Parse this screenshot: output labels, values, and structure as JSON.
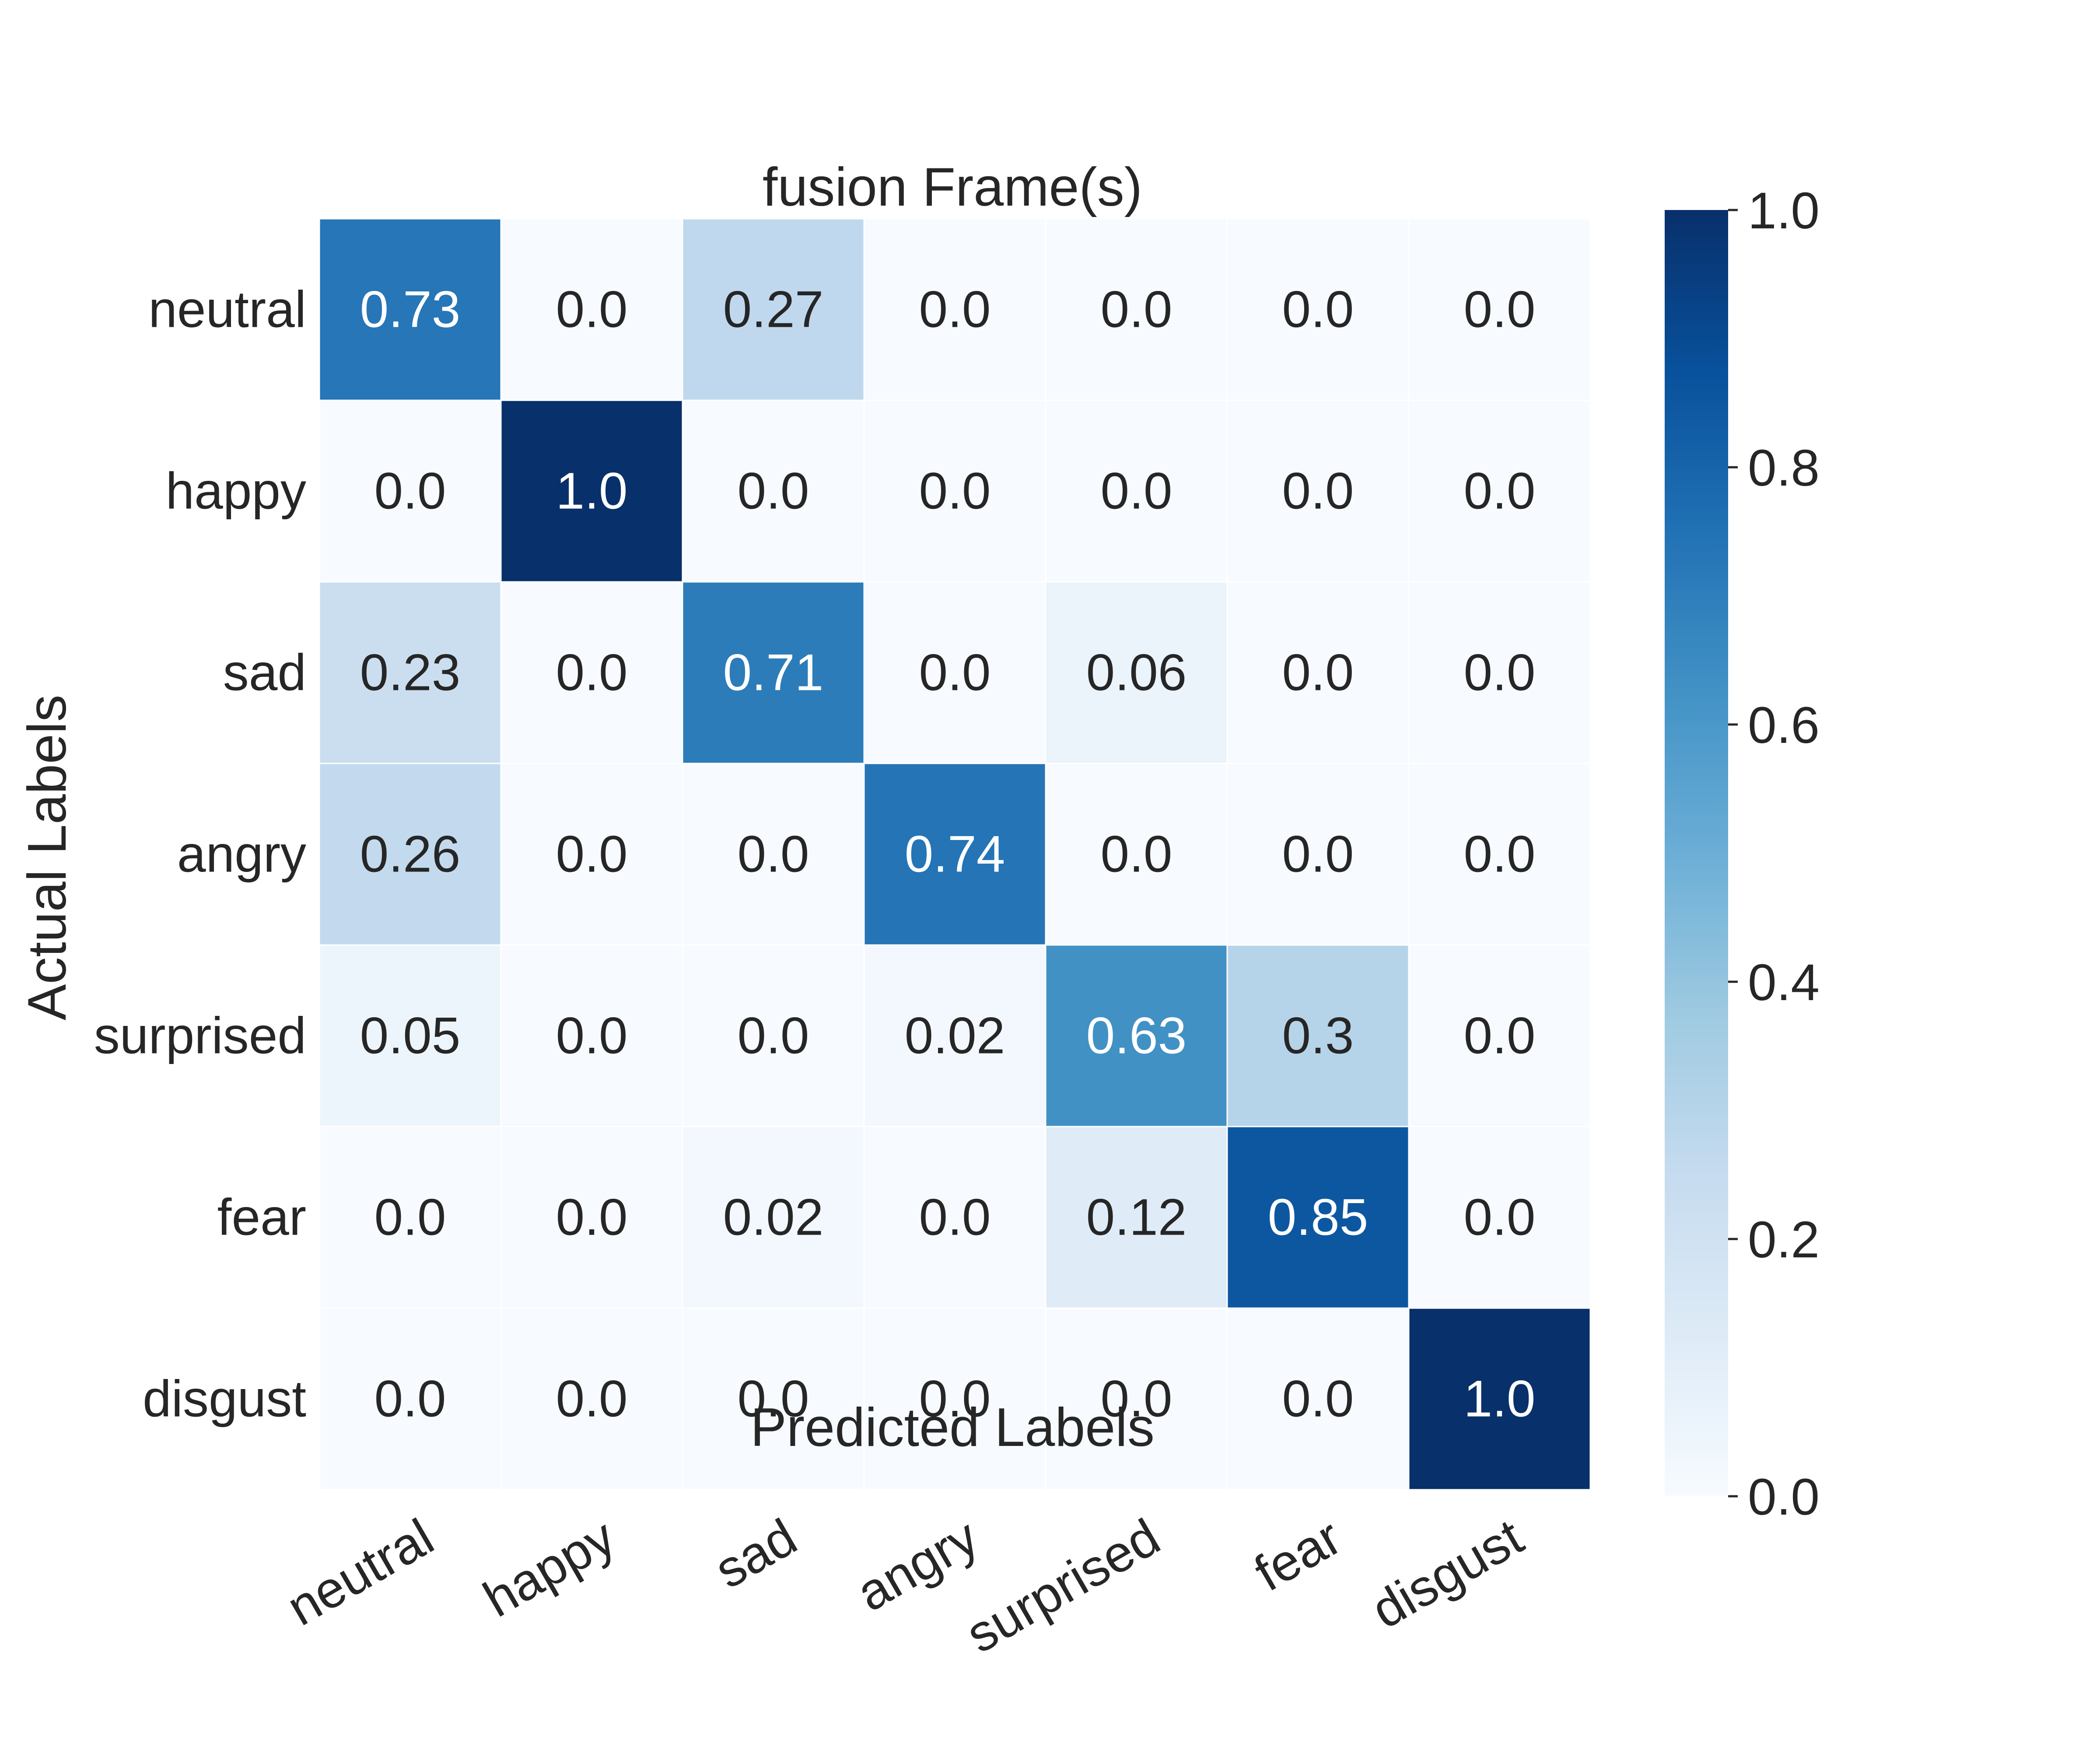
{
  "chart_data": {
    "type": "heatmap",
    "title": "fusion Frame(s)",
    "xlabel": "Predicted Labels",
    "ylabel": "Actual Labels",
    "x_categories": [
      "neutral",
      "happy",
      "sad",
      "angry",
      "surprised",
      "fear",
      "disgust"
    ],
    "y_categories": [
      "neutral",
      "happy",
      "sad",
      "angry",
      "surprised",
      "fear",
      "disgust"
    ],
    "values": [
      [
        0.73,
        0.0,
        0.27,
        0.0,
        0.0,
        0.0,
        0.0
      ],
      [
        0.0,
        1.0,
        0.0,
        0.0,
        0.0,
        0.0,
        0.0
      ],
      [
        0.23,
        0.0,
        0.71,
        0.0,
        0.06,
        0.0,
        0.0
      ],
      [
        0.26,
        0.0,
        0.0,
        0.74,
        0.0,
        0.0,
        0.0
      ],
      [
        0.05,
        0.0,
        0.0,
        0.02,
        0.63,
        0.3,
        0.0
      ],
      [
        0.0,
        0.0,
        0.02,
        0.0,
        0.12,
        0.85,
        0.0
      ],
      [
        0.0,
        0.0,
        0.0,
        0.0,
        0.0,
        0.0,
        1.0
      ]
    ],
    "cell_labels": [
      [
        "0.73",
        "0.0",
        "0.27",
        "0.0",
        "0.0",
        "0.0",
        "0.0"
      ],
      [
        "0.0",
        "1.0",
        "0.0",
        "0.0",
        "0.0",
        "0.0",
        "0.0"
      ],
      [
        "0.23",
        "0.0",
        "0.71",
        "0.0",
        "0.06",
        "0.0",
        "0.0"
      ],
      [
        "0.26",
        "0.0",
        "0.0",
        "0.74",
        "0.0",
        "0.0",
        "0.0"
      ],
      [
        "0.05",
        "0.0",
        "0.0",
        "0.02",
        "0.63",
        "0.3",
        "0.0"
      ],
      [
        "0.0",
        "0.0",
        "0.02",
        "0.0",
        "0.12",
        "0.85",
        "0.0"
      ],
      [
        "0.0",
        "0.0",
        "0.0",
        "0.0",
        "0.0",
        "0.0",
        "1.0"
      ]
    ],
    "colorbar": {
      "range": [
        0.0,
        1.0
      ],
      "ticks": [
        "0.0",
        "0.2",
        "0.4",
        "0.6",
        "0.8",
        "1.0"
      ],
      "colormap": "Blues"
    },
    "grid": false,
    "legend": "none"
  },
  "colors": {
    "blues_stops": [
      "#f7fbff",
      "#deebf7",
      "#c6dbef",
      "#9ecae1",
      "#6baed6",
      "#4292c6",
      "#2171b5",
      "#08519c",
      "#08306b"
    ],
    "text_dark": "#262626",
    "text_light": "#ffffff",
    "cell_border": "#ffffff"
  }
}
